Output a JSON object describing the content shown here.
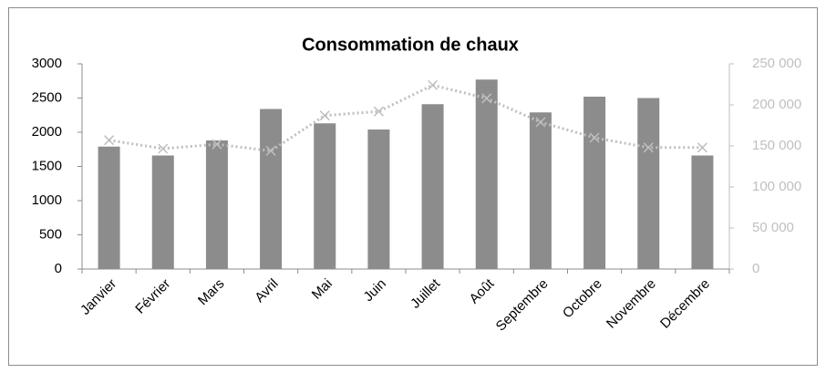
{
  "chart_data": {
    "type": "bar",
    "title": "Consommation de chaux",
    "categories": [
      "Janvier",
      "Février",
      "Mars",
      "Avril",
      "Mai",
      "Juin",
      "Juillet",
      "Août",
      "Septembre",
      "Octobre",
      "Novembre",
      "Décembre"
    ],
    "series": [
      {
        "type": "bar",
        "color": "#8c8c8c",
        "values": [
          1790,
          1660,
          1880,
          2340,
          2130,
          2040,
          2410,
          2770,
          2290,
          2520,
          2500,
          1660
        ]
      },
      {
        "type": "line",
        "axis": "y2",
        "color": "#bfbfbf",
        "values": [
          157000,
          146700,
          152000,
          144000,
          187000,
          192000,
          224000,
          208000,
          179000,
          160000,
          148000,
          148000
        ]
      }
    ],
    "ylim": [
      0,
      3000
    ],
    "yticks": [
      0,
      500,
      1000,
      1500,
      2000,
      2500,
      3000
    ],
    "y2lim": [
      0,
      250000
    ],
    "y2ticks": [
      0,
      {
        "value": 50000,
        "label": "50 000"
      },
      {
        "value": 100000,
        "label": "100 000"
      },
      {
        "value": 150000,
        "label": "150 000"
      },
      {
        "value": 200000,
        "label": "200 000"
      },
      {
        "value": 250000,
        "label": "250 000"
      }
    ]
  }
}
